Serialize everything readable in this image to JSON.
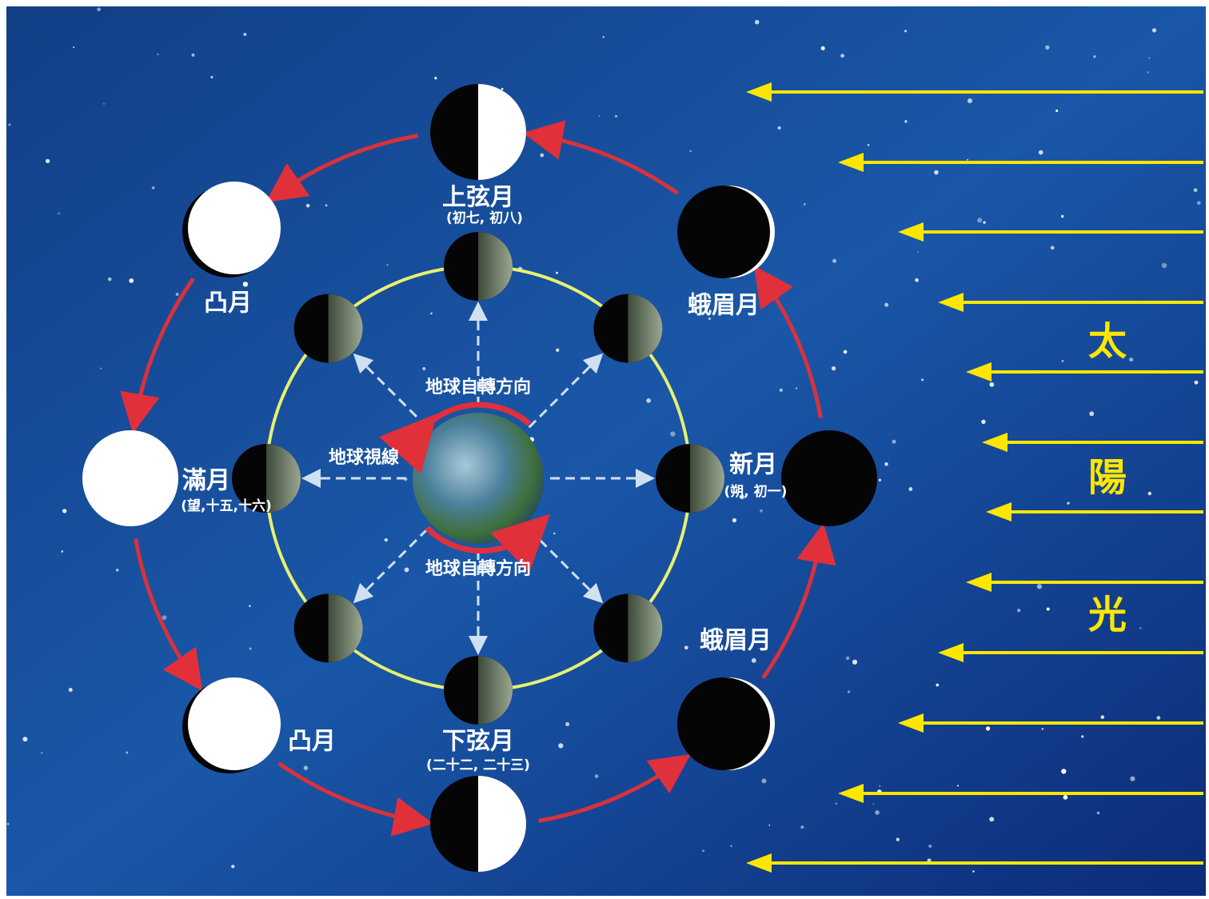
{
  "phases": [
    {
      "label": "上弦月",
      "note": "(初七, 初八)"
    },
    {
      "label": "凸月"
    },
    {
      "label": "滿月",
      "note": "(望,十五,十六)"
    },
    {
      "label": "凸月"
    },
    {
      "label": "下弦月",
      "note": "(二十二, 二十三)"
    },
    {
      "label": "蛾眉月"
    },
    {
      "label": "新月",
      "note": "(朔, 初一)"
    },
    {
      "label": "蛾眉月"
    }
  ],
  "earth": {
    "rotation_top": "地球自轉方向",
    "rotation_bottom": "地球自轉方向",
    "sightline": "地球視線"
  },
  "sunlight": [
    "太",
    "陽",
    "光"
  ]
}
